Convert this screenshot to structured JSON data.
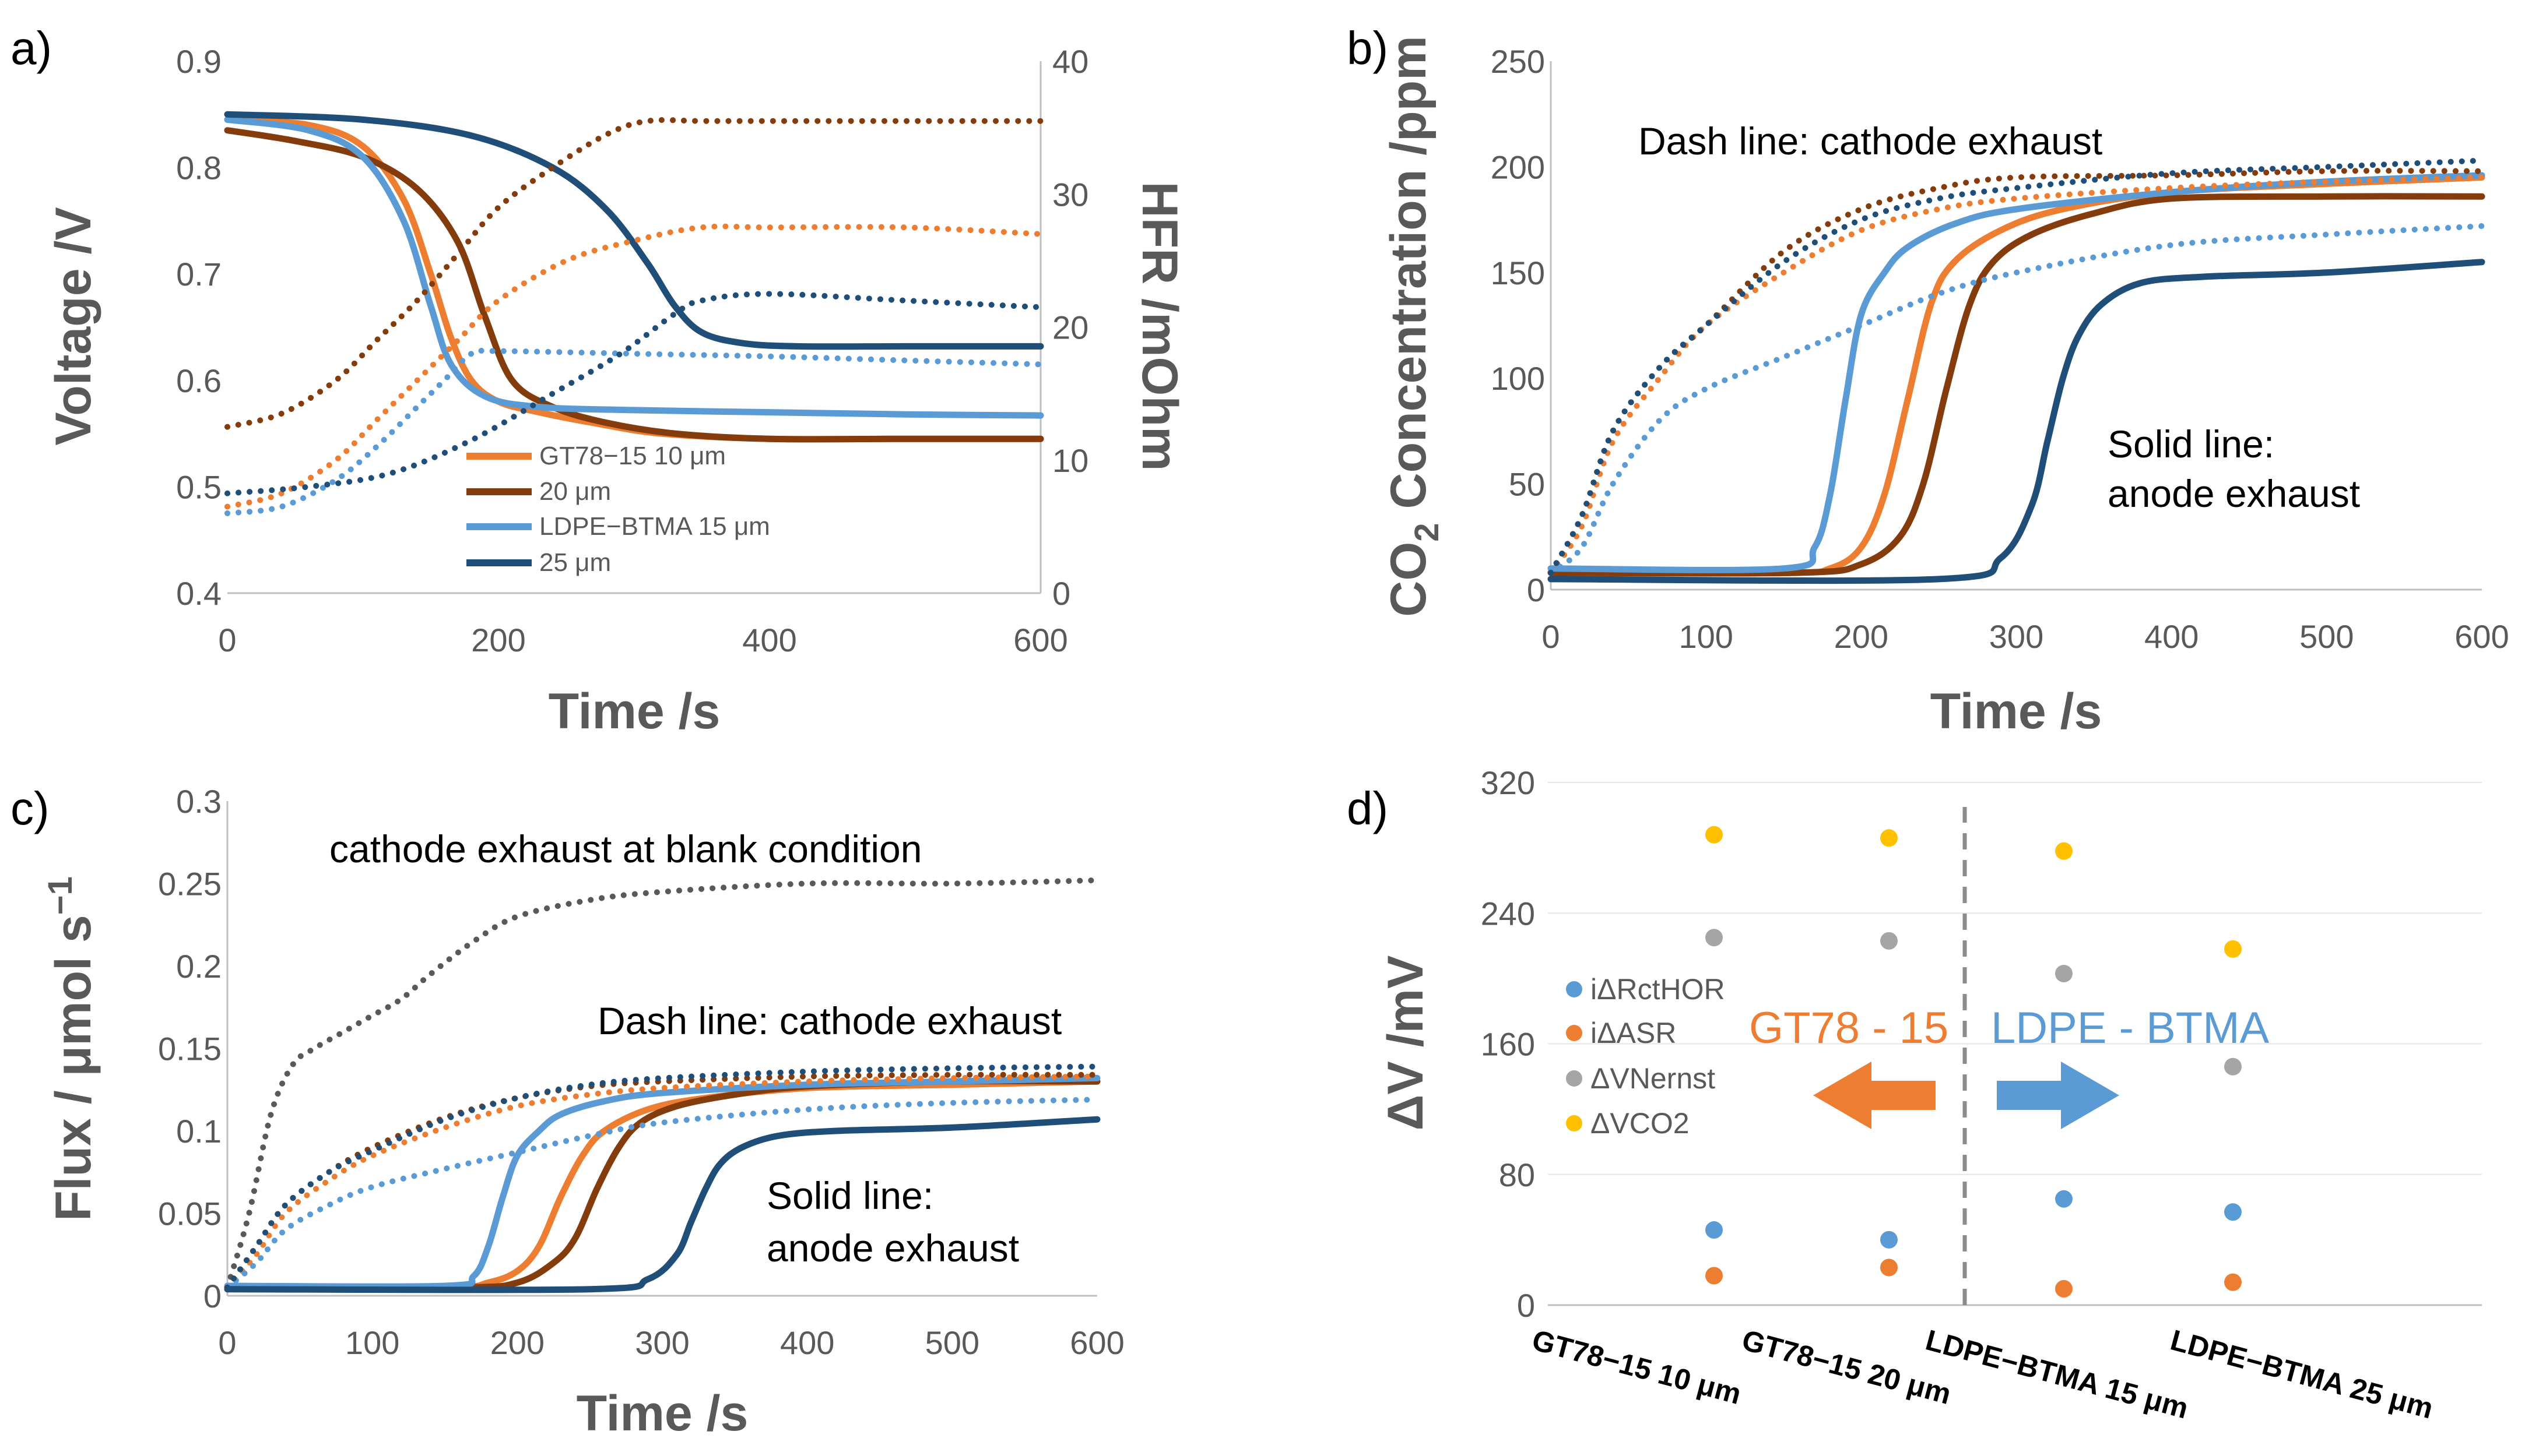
{
  "chart_data": [
    {
      "id": "a",
      "panel_label": "a)",
      "type": "line",
      "xlabel": "Time /s",
      "ylabel": "Voltage /V",
      "y2label": "HFR /mOhm",
      "xlim": [
        0,
        600
      ],
      "ylim": [
        0.4,
        0.9
      ],
      "y2lim": [
        0,
        40
      ],
      "x_ticks": [
        "0",
        "200",
        "400",
        "600"
      ],
      "y_ticks": [
        "0.4",
        "0.5",
        "0.6",
        "0.7",
        "0.8",
        "0.9"
      ],
      "y2_ticks": [
        "0",
        "10",
        "20",
        "30",
        "40"
      ],
      "legend": [
        "GT78−15 10 μm",
        "20 μm",
        "LDPE−BTMA 15 μm",
        "25 μm"
      ],
      "series": [
        {
          "name": "GT78−15 10 μm",
          "color": "#ED7D31",
          "style": "solid",
          "axis": "y",
          "x": [
            0,
            60,
            100,
            130,
            150,
            165,
            180,
            200,
            230,
            270,
            320,
            400,
            500,
            600
          ],
          "y": [
            0.845,
            0.84,
            0.82,
            0.77,
            0.7,
            0.64,
            0.6,
            0.58,
            0.57,
            0.56,
            0.55,
            0.545,
            0.545,
            0.545
          ]
        },
        {
          "name": "20 μm",
          "color": "#843C0C",
          "style": "solid",
          "axis": "y",
          "x": [
            0,
            50,
            100,
            140,
            170,
            190,
            210,
            240,
            280,
            330,
            400,
            500,
            600
          ],
          "y": [
            0.835,
            0.825,
            0.81,
            0.78,
            0.73,
            0.66,
            0.6,
            0.575,
            0.56,
            0.55,
            0.545,
            0.545,
            0.545
          ]
        },
        {
          "name": "LDPE−BTMA 15 μm",
          "color": "#5B9BD5",
          "style": "solid",
          "axis": "y",
          "x": [
            0,
            60,
            100,
            130,
            150,
            165,
            190,
            230,
            300,
            400,
            500,
            600
          ],
          "y": [
            0.845,
            0.835,
            0.81,
            0.75,
            0.67,
            0.615,
            0.585,
            0.575,
            0.572,
            0.57,
            0.568,
            0.567
          ]
        },
        {
          "name": "25 μm",
          "color": "#1F4E79",
          "style": "solid",
          "axis": "y",
          "x": [
            0,
            100,
            180,
            240,
            280,
            310,
            330,
            350,
            380,
            420,
            500,
            600
          ],
          "y": [
            0.85,
            0.845,
            0.83,
            0.8,
            0.76,
            0.71,
            0.67,
            0.645,
            0.635,
            0.632,
            0.632,
            0.632
          ]
        },
        {
          "name": "GT78−15 10 μm HFR",
          "color": "#ED7D31",
          "style": "dot",
          "axis": "y2",
          "x": [
            0,
            40,
            80,
            110,
            140,
            170,
            200,
            250,
            300,
            350,
            400,
            500,
            600
          ],
          "y": [
            6.5,
            7.5,
            10,
            13,
            16,
            19,
            22,
            25,
            26.5,
            27.5,
            27.5,
            27.5,
            27
          ]
        },
        {
          "name": "20 μm HFR",
          "color": "#843C0C",
          "style": "dot",
          "axis": "y2",
          "x": [
            0,
            40,
            80,
            110,
            140,
            170,
            200,
            240,
            280,
            310,
            350,
            400,
            500,
            600
          ],
          "y": [
            12.5,
            13.5,
            16,
            19,
            22,
            25.5,
            29,
            32,
            34.5,
            35.5,
            35.5,
            35.5,
            35.5,
            35.5
          ]
        },
        {
          "name": "LDPE−BTMA 15 μm HFR",
          "color": "#5B9BD5",
          "style": "dot",
          "axis": "y2",
          "x": [
            0,
            40,
            80,
            110,
            140,
            160,
            180,
            200,
            300,
            400,
            500,
            600
          ],
          "y": [
            6,
            6.5,
            8.5,
            11,
            14,
            16,
            18,
            18.2,
            18,
            17.8,
            17.5,
            17.2
          ]
        },
        {
          "name": "25 μm HFR",
          "color": "#1F4E79",
          "style": "dot",
          "axis": "y2",
          "x": [
            0,
            60,
            120,
            180,
            240,
            290,
            330,
            350,
            400,
            500,
            600
          ],
          "y": [
            7.5,
            8,
            9,
            11.5,
            15,
            18,
            21,
            22,
            22.5,
            22,
            21.5
          ]
        }
      ]
    },
    {
      "id": "b",
      "panel_label": "b)",
      "type": "line",
      "xlabel": "Time /s",
      "ylabel": "CO",
      "ylabel_sub": "2",
      "ylabel_rest": " Concentration /ppm",
      "xlim": [
        0,
        600
      ],
      "ylim": [
        0,
        250
      ],
      "x_ticks": [
        "0",
        "100",
        "200",
        "300",
        "400",
        "500",
        "600"
      ],
      "y_ticks": [
        "0",
        "50",
        "100",
        "150",
        "200",
        "250"
      ],
      "annotations": [
        "Dash line: cathode exhaust",
        "Solid line:",
        "anode exhaust"
      ],
      "series": [
        {
          "name": "GT78−15 10 μm anode",
          "color": "#ED7D31",
          "style": "solid",
          "x": [
            0,
            150,
            180,
            200,
            215,
            230,
            245,
            260,
            290,
            330,
            400,
            500,
            600
          ],
          "y": [
            8,
            8,
            10,
            20,
            45,
            90,
            135,
            155,
            170,
            180,
            188,
            192,
            195
          ]
        },
        {
          "name": "20 μm anode",
          "color": "#843C0C",
          "style": "solid",
          "x": [
            0,
            160,
            200,
            225,
            240,
            255,
            270,
            285,
            310,
            350,
            400,
            500,
            600
          ],
          "y": [
            8,
            8,
            12,
            25,
            50,
            95,
            135,
            155,
            168,
            178,
            185,
            186,
            186
          ]
        },
        {
          "name": "LDPE−BTMA 15 μm anode",
          "color": "#5B9BD5",
          "style": "solid",
          "x": [
            0,
            150,
            170,
            180,
            190,
            200,
            215,
            230,
            260,
            300,
            400,
            500,
            600
          ],
          "y": [
            10,
            10,
            20,
            45,
            90,
            130,
            150,
            162,
            173,
            180,
            188,
            193,
            196
          ]
        },
        {
          "name": "25 μm anode",
          "color": "#1F4E79",
          "style": "solid",
          "x": [
            0,
            250,
            290,
            310,
            320,
            330,
            340,
            355,
            380,
            420,
            500,
            600
          ],
          "y": [
            5,
            5,
            15,
            40,
            70,
            100,
            120,
            135,
            145,
            148,
            150,
            155
          ]
        },
        {
          "name": "GT78−15 10 μm cathode",
          "color": "#ED7D31",
          "style": "dot",
          "x": [
            0,
            20,
            40,
            70,
            100,
            150,
            200,
            250,
            300,
            400,
            500,
            600
          ],
          "y": [
            8,
            30,
            70,
            100,
            125,
            150,
            170,
            180,
            185,
            190,
            193,
            195
          ]
        },
        {
          "name": "20 μm cathode",
          "color": "#843C0C",
          "style": "dot",
          "x": [
            0,
            20,
            40,
            70,
            100,
            150,
            200,
            250,
            300,
            400,
            500,
            600
          ],
          "y": [
            8,
            35,
            75,
            105,
            125,
            160,
            180,
            190,
            195,
            196,
            198,
            198
          ]
        },
        {
          "name": "LDPE−BTMA 15 μm cathode",
          "color": "#5B9BD5",
          "style": "dot",
          "x": [
            0,
            20,
            40,
            70,
            100,
            150,
            200,
            250,
            300,
            400,
            500,
            600
          ],
          "y": [
            8,
            20,
            50,
            80,
            95,
            110,
            125,
            140,
            150,
            163,
            168,
            172
          ]
        },
        {
          "name": "25 μm cathode",
          "color": "#1F4E79",
          "style": "dot",
          "x": [
            0,
            20,
            40,
            70,
            100,
            150,
            200,
            250,
            300,
            400,
            500,
            600
          ],
          "y": [
            8,
            35,
            75,
            105,
            125,
            155,
            175,
            185,
            190,
            197,
            200,
            203
          ]
        }
      ]
    },
    {
      "id": "c",
      "panel_label": "c)",
      "type": "line",
      "xlabel": "Time /s",
      "ylabel": "Flux / μmol s",
      "ylabel_sup": "−1",
      "xlim": [
        0,
        600
      ],
      "ylim": [
        0,
        0.3
      ],
      "x_ticks": [
        "0",
        "100",
        "200",
        "300",
        "400",
        "500",
        "600"
      ],
      "y_ticks": [
        "0",
        "0.05",
        "0.1",
        "0.15",
        "0.2",
        "0.25",
        "0.3"
      ],
      "annotations": [
        "cathode exhaust at blank condition",
        "Dash line: cathode exhaust",
        "Solid line:",
        "anode exhaust"
      ],
      "series": [
        {
          "name": "blank condition",
          "color": "#595959",
          "style": "dot",
          "x": [
            0,
            15,
            30,
            45,
            60,
            80,
            100,
            120,
            140,
            170,
            200,
            250,
            300,
            400,
            500,
            600
          ],
          "y": [
            0.005,
            0.05,
            0.11,
            0.14,
            0.15,
            0.16,
            0.17,
            0.18,
            0.195,
            0.215,
            0.23,
            0.24,
            0.245,
            0.25,
            0.25,
            0.252
          ]
        },
        {
          "name": "GT78−15 10 μm anode",
          "color": "#ED7D31",
          "style": "solid",
          "x": [
            0,
            150,
            180,
            200,
            215,
            230,
            245,
            260,
            290,
            330,
            400,
            500,
            600
          ],
          "y": [
            0.005,
            0.005,
            0.008,
            0.015,
            0.03,
            0.06,
            0.085,
            0.1,
            0.113,
            0.12,
            0.126,
            0.128,
            0.13
          ]
        },
        {
          "name": "20 μm anode",
          "color": "#843C0C",
          "style": "solid",
          "x": [
            0,
            160,
            200,
            225,
            240,
            255,
            270,
            285,
            310,
            350,
            400,
            500,
            600
          ],
          "y": [
            0.005,
            0.005,
            0.008,
            0.02,
            0.035,
            0.065,
            0.09,
            0.105,
            0.115,
            0.122,
            0.127,
            0.13,
            0.13
          ]
        },
        {
          "name": "LDPE−BTMA 15 μm anode",
          "color": "#5B9BD5",
          "style": "solid",
          "x": [
            0,
            150,
            170,
            180,
            190,
            200,
            215,
            230,
            260,
            300,
            400,
            500,
            600
          ],
          "y": [
            0.006,
            0.006,
            0.012,
            0.03,
            0.06,
            0.085,
            0.1,
            0.11,
            0.118,
            0.123,
            0.128,
            0.13,
            0.132
          ]
        },
        {
          "name": "25 μm anode",
          "color": "#1F4E79",
          "style": "solid",
          "x": [
            0,
            250,
            290,
            310,
            320,
            330,
            340,
            355,
            380,
            420,
            500,
            600
          ],
          "y": [
            0.004,
            0.004,
            0.01,
            0.025,
            0.045,
            0.065,
            0.08,
            0.09,
            0.097,
            0.1,
            0.102,
            0.107
          ]
        },
        {
          "name": "GT78−15 10 μm cathode",
          "color": "#ED7D31",
          "style": "dot",
          "x": [
            0,
            20,
            40,
            70,
            100,
            150,
            200,
            250,
            300,
            400,
            500,
            600
          ],
          "y": [
            0.005,
            0.025,
            0.05,
            0.07,
            0.085,
            0.102,
            0.115,
            0.122,
            0.126,
            0.13,
            0.132,
            0.133
          ]
        },
        {
          "name": "20 μm cathode",
          "color": "#843C0C",
          "style": "dot",
          "x": [
            0,
            20,
            40,
            70,
            100,
            150,
            200,
            250,
            300,
            400,
            500,
            600
          ],
          "y": [
            0.005,
            0.03,
            0.055,
            0.075,
            0.09,
            0.108,
            0.12,
            0.127,
            0.13,
            0.133,
            0.134,
            0.134
          ]
        },
        {
          "name": "LDPE−BTMA 15 μm cathode",
          "color": "#5B9BD5",
          "style": "dot",
          "x": [
            0,
            20,
            40,
            70,
            100,
            150,
            200,
            250,
            300,
            400,
            500,
            600
          ],
          "y": [
            0.005,
            0.02,
            0.04,
            0.055,
            0.066,
            0.077,
            0.087,
            0.097,
            0.105,
            0.113,
            0.117,
            0.119
          ]
        },
        {
          "name": "25 μm cathode",
          "color": "#1F4E79",
          "style": "dot",
          "x": [
            0,
            20,
            40,
            70,
            100,
            150,
            200,
            250,
            300,
            400,
            500,
            600
          ],
          "y": [
            0.005,
            0.03,
            0.055,
            0.075,
            0.088,
            0.107,
            0.12,
            0.128,
            0.132,
            0.136,
            0.138,
            0.139
          ]
        }
      ]
    },
    {
      "id": "d",
      "panel_label": "d)",
      "type": "scatter",
      "ylabel": "ΔV /mV",
      "ylim": [
        0,
        320
      ],
      "y_ticks": [
        "0",
        "80",
        "160",
        "240",
        "320"
      ],
      "categories": [
        "GT78−15 10 μm",
        "GT78−15 20 μm",
        "LDPE−BTMA 15 μm",
        "LDPE−BTMA 25 μm"
      ],
      "group_labels": [
        "GT78 - 15",
        "LDPE - BTMA"
      ],
      "series": [
        {
          "name": "iΔRctHOR",
          "color": "#5B9BD5",
          "values": [
            46,
            40,
            65,
            57
          ]
        },
        {
          "name": "iΔASR",
          "color": "#ED7D31",
          "values": [
            18,
            23,
            10,
            14
          ]
        },
        {
          "name": "ΔVNernst",
          "color": "#A5A5A5",
          "values": [
            225,
            223,
            203,
            146
          ]
        },
        {
          "name": "ΔVCO2",
          "color": "#FFC000",
          "values": [
            288,
            286,
            278,
            218
          ]
        }
      ]
    }
  ]
}
